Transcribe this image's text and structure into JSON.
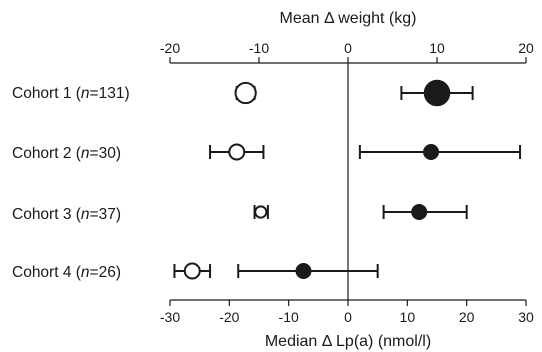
{
  "chart_data": {
    "type": "scatter",
    "title": "",
    "top_axis": {
      "label": "Mean Δ weight (kg)",
      "lim": [
        -20,
        20
      ],
      "ticks": [
        -20,
        -10,
        0,
        10,
        20
      ]
    },
    "bottom_axis": {
      "label": "Median Δ Lp(a) (nmol/l)",
      "lim": [
        -30,
        30
      ],
      "ticks": [
        -30,
        -20,
        -10,
        0,
        10,
        20,
        30
      ]
    },
    "categories": [
      {
        "name": "Cohort 1",
        "n": "131"
      },
      {
        "name": "Cohort 2",
        "n": "30"
      },
      {
        "name": "Cohort 3",
        "n": "37"
      },
      {
        "name": "Cohort 4",
        "n": "26"
      }
    ],
    "weight": [
      {
        "value": -11.5,
        "low": -12.5,
        "high": -10.5,
        "marker_scale": 1.35
      },
      {
        "value": -12.5,
        "low": -15.5,
        "high": -9.5,
        "marker_scale": 1.0
      },
      {
        "value": -9.8,
        "low": -10.5,
        "high": -9.0,
        "marker_scale": 0.75
      },
      {
        "value": -17.5,
        "low": -19.5,
        "high": -15.5,
        "marker_scale": 1.0
      }
    ],
    "lpa": [
      {
        "value": 15,
        "low": 9,
        "high": 21,
        "marker_scale": 1.7
      },
      {
        "value": 14,
        "low": 2,
        "high": 29,
        "marker_scale": 1.0
      },
      {
        "value": 12,
        "low": 6,
        "high": 20,
        "marker_scale": 1.0
      },
      {
        "value": -7.5,
        "low": -18.5,
        "high": 5,
        "marker_scale": 1.0
      }
    ]
  }
}
